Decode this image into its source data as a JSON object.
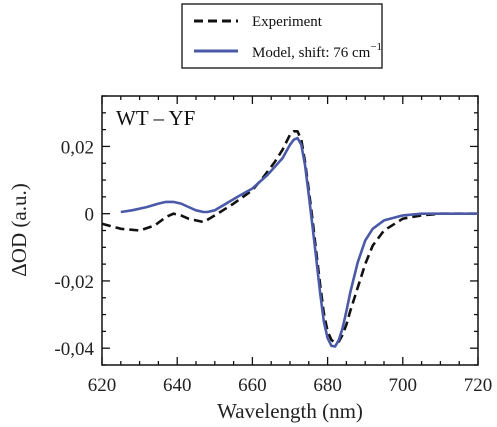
{
  "chart_data": {
    "type": "line",
    "title": "",
    "panel_label": "WT – YF",
    "xlabel": "Wavelength (nm)",
    "ylabel": "ΔOD (a.u.)",
    "xlim": [
      620,
      720
    ],
    "ylim": [
      -0.045,
      0.035
    ],
    "x_ticks": [
      620,
      640,
      660,
      680,
      700,
      720
    ],
    "x_tick_labels": [
      "620",
      "640",
      "660",
      "680",
      "700",
      "720"
    ],
    "y_ticks": [
      -0.04,
      -0.02,
      0,
      0.02
    ],
    "y_tick_labels": [
      "-0,04",
      "-0,02",
      "0",
      "0,02"
    ],
    "legend": {
      "placement": "top-center, outside plot",
      "experiment_label": "Experiment",
      "model_label_prefix": "Model, shift: 76 cm",
      "model_label_sup": "−1"
    },
    "series": [
      {
        "name": "Experiment",
        "style": "dashed",
        "color": "#111111",
        "x": [
          620,
          625,
          630,
          634,
          637,
          639,
          641,
          643,
          645,
          647,
          650,
          655,
          660,
          663,
          666,
          668,
          670,
          671,
          672,
          673,
          674,
          675,
          676,
          677,
          678,
          679,
          680,
          681,
          682,
          683,
          684,
          685,
          686,
          688,
          690,
          692,
          695,
          700,
          705,
          710,
          715,
          720
        ],
        "y": [
          -0.003,
          -0.0045,
          -0.005,
          -0.0035,
          -0.001,
          0,
          -0.0005,
          -0.0015,
          -0.002,
          -0.0025,
          -0.0005,
          0.003,
          0.007,
          0.011,
          0.0155,
          0.019,
          0.0235,
          0.0245,
          0.0245,
          0.022,
          0.0155,
          0.007,
          -0.002,
          -0.0115,
          -0.021,
          -0.0295,
          -0.035,
          -0.0375,
          -0.0385,
          -0.038,
          -0.036,
          -0.033,
          -0.029,
          -0.022,
          -0.015,
          -0.0095,
          -0.005,
          -0.0015,
          -0.0005,
          0,
          0,
          0
        ]
      },
      {
        "name": "Model, shift: 76 cm−1",
        "style": "solid",
        "color": "#4a5aa8",
        "x": [
          625,
          628,
          632,
          635,
          637,
          639,
          641,
          643,
          645,
          647,
          648,
          650,
          653,
          656,
          660,
          664,
          668,
          670,
          671,
          672,
          673,
          674,
          675,
          676,
          677,
          678,
          679,
          680,
          681,
          682,
          683,
          684,
          685,
          686,
          688,
          690,
          692,
          695,
          700,
          705,
          710,
          715,
          720
        ],
        "y": [
          0.0005,
          0.001,
          0.002,
          0.003,
          0.0035,
          0.0035,
          0.003,
          0.002,
          0.001,
          0.0005,
          0.0005,
          0.001,
          0.003,
          0.005,
          0.0075,
          0.0115,
          0.0165,
          0.0205,
          0.022,
          0.0225,
          0.0205,
          0.0145,
          0.0055,
          -0.004,
          -0.0135,
          -0.0235,
          -0.032,
          -0.037,
          -0.0393,
          -0.0395,
          -0.0375,
          -0.034,
          -0.029,
          -0.0235,
          -0.0145,
          -0.008,
          -0.0045,
          -0.002,
          -0.0005,
          0,
          0,
          0,
          0
        ]
      }
    ]
  }
}
